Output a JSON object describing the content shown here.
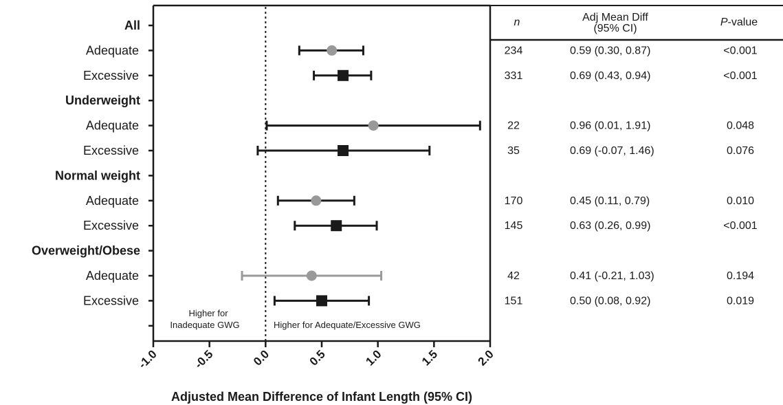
{
  "chart_data": {
    "type": "forest",
    "xlabel": "Adjusted Mean Difference of Infant Length (95% CI)",
    "xlim": [
      -1.0,
      2.0
    ],
    "x_ticks": [
      "-1.0",
      "-0.5",
      "0.0",
      "0.5",
      "1.0",
      "1.5",
      "2.0"
    ],
    "reference_line": 0.0,
    "annotations": {
      "left": [
        "Higher for",
        "Inadequate GWG"
      ],
      "right": "Higher for Adequate/Excessive GWG"
    },
    "columns": {
      "n": "n",
      "estimate": [
        "Adj Mean  Diff",
        "(95%  CI)"
      ],
      "p_prefix": "P",
      "p_suffix": "-value"
    },
    "rows": [
      {
        "kind": "group",
        "label": "All"
      },
      {
        "kind": "item",
        "label": "Adequate",
        "marker": "circle",
        "color": "#999999",
        "est": 0.59,
        "lo": 0.3,
        "hi": 0.87,
        "n": "234",
        "ci_text": "0.59 (0.30, 0.87)",
        "p": "<0.001"
      },
      {
        "kind": "item",
        "label": "Excessive",
        "marker": "square",
        "color": "#1a1a1a",
        "est": 0.69,
        "lo": 0.43,
        "hi": 0.94,
        "n": "331",
        "ci_text": "0.69 (0.43, 0.94)",
        "p": "<0.001"
      },
      {
        "kind": "group",
        "label": "Underweight"
      },
      {
        "kind": "item",
        "label": "Adequate",
        "marker": "circle",
        "color": "#999999",
        "est": 0.96,
        "lo": 0.01,
        "hi": 1.91,
        "n": "22",
        "ci_text": "0.96 (0.01, 1.91)",
        "p": "0.048"
      },
      {
        "kind": "item",
        "label": "Excessive",
        "marker": "square",
        "color": "#1a1a1a",
        "est": 0.69,
        "lo": -0.07,
        "hi": 1.46,
        "n": "35",
        "ci_text": "0.69 (-0.07, 1.46)",
        "p": "0.076"
      },
      {
        "kind": "group",
        "label": "Normal weight"
      },
      {
        "kind": "item",
        "label": "Adequate",
        "marker": "circle",
        "color": "#999999",
        "est": 0.45,
        "lo": 0.11,
        "hi": 0.79,
        "n": "170",
        "ci_text": "0.45 (0.11, 0.79)",
        "p": "0.010"
      },
      {
        "kind": "item",
        "label": "Excessive",
        "marker": "square",
        "color": "#1a1a1a",
        "est": 0.63,
        "lo": 0.26,
        "hi": 0.99,
        "n": "145",
        "ci_text": "0.63 (0.26, 0.99)",
        "p": "<0.001"
      },
      {
        "kind": "group",
        "label": "Overweight/Obese"
      },
      {
        "kind": "item",
        "label": "Adequate",
        "marker": "circle",
        "color": "#999999",
        "line_color": "#999999",
        "est": 0.41,
        "lo": -0.21,
        "hi": 1.03,
        "n": "42",
        "ci_text": "0.41 (-0.21, 1.03)",
        "p": "0.194"
      },
      {
        "kind": "item",
        "label": "Excessive",
        "marker": "square",
        "color": "#1a1a1a",
        "est": 0.5,
        "lo": 0.08,
        "hi": 0.92,
        "n": "151",
        "ci_text": "0.50 (0.08, 0.92)",
        "p": "0.019"
      }
    ]
  }
}
